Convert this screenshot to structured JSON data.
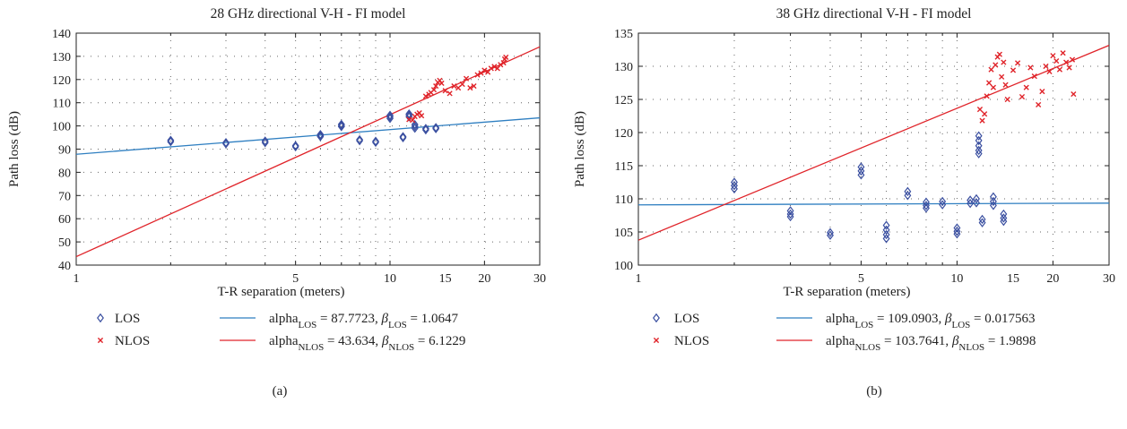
{
  "chart_data": [
    {
      "type": "scatter",
      "panel_label": "(a)",
      "title": "28 GHz directional V-H - FI model",
      "xlabel": "T-R separation (meters)",
      "ylabel": "Path loss (dB)",
      "xscale": "log",
      "xlim": [
        1,
        30
      ],
      "ylim": [
        40,
        140
      ],
      "xticks": [
        1,
        5,
        10,
        15,
        20,
        30
      ],
      "yticks": [
        40,
        50,
        60,
        70,
        80,
        90,
        100,
        110,
        120,
        130,
        140
      ],
      "grid": true,
      "legend_position": "bottom",
      "series": [
        {
          "name": "LOS",
          "marker": "diamond",
          "color": "#3a4fa0",
          "points": [
            [
              2,
              93.8
            ],
            [
              2,
              93.2
            ],
            [
              3,
              92.8
            ],
            [
              3,
              92.3
            ],
            [
              4,
              93.5
            ],
            [
              4,
              92.8
            ],
            [
              5,
              91.5
            ],
            [
              5,
              91.0
            ],
            [
              6,
              96.3
            ],
            [
              6,
              95.8
            ],
            [
              6,
              95.4
            ],
            [
              7,
              100.7
            ],
            [
              7,
              100.2
            ],
            [
              7,
              99.7
            ],
            [
              8,
              94.1
            ],
            [
              8,
              93.6
            ],
            [
              9,
              93.4
            ],
            [
              9,
              92.9
            ],
            [
              10,
              104.6
            ],
            [
              10,
              103.9
            ],
            [
              10,
              103.2
            ],
            [
              11,
              95.4
            ],
            [
              11,
              94.9
            ],
            [
              11.5,
              105.2
            ],
            [
              11.5,
              104.6
            ],
            [
              11.5,
              103.9
            ],
            [
              12,
              100.6
            ],
            [
              12,
              99.8
            ],
            [
              12,
              99.0
            ],
            [
              13,
              98.9
            ],
            [
              13,
              98.3
            ],
            [
              14,
              99.3
            ],
            [
              14,
              98.8
            ]
          ]
        },
        {
          "name": "NLOS",
          "marker": "x",
          "color": "#e0242a",
          "points": [
            [
              11.5,
              102.8
            ],
            [
              11.8,
              102.5
            ],
            [
              12,
              104.1
            ],
            [
              12.2,
              105.0
            ],
            [
              12.4,
              105.6
            ],
            [
              12.6,
              104.4
            ],
            [
              13,
              112.8
            ],
            [
              13.3,
              113.6
            ],
            [
              13.5,
              114.4
            ],
            [
              13.8,
              115.6
            ],
            [
              14,
              117.2
            ],
            [
              14.2,
              118.8
            ],
            [
              14.4,
              119.6
            ],
            [
              14.6,
              118.4
            ],
            [
              15,
              115.2
            ],
            [
              15.5,
              114.0
            ],
            [
              16,
              117.2
            ],
            [
              16.5,
              116.4
            ],
            [
              17,
              118.0
            ],
            [
              17.5,
              120.4
            ],
            [
              18,
              116.4
            ],
            [
              18.5,
              117.2
            ],
            [
              19,
              122.0
            ],
            [
              19.5,
              122.8
            ],
            [
              20,
              124.0
            ],
            [
              20.5,
              123.2
            ],
            [
              21,
              124.8
            ],
            [
              21.5,
              125.6
            ],
            [
              22,
              124.8
            ],
            [
              22.5,
              126.4
            ],
            [
              23,
              127.2
            ],
            [
              23.2,
              128.8
            ],
            [
              23.4,
              129.6
            ]
          ]
        }
      ],
      "fits": [
        {
          "color": "#2f7fc1",
          "alpha": 87.7723,
          "beta": 1.0647,
          "sub": "LOS",
          "alpha_text": "87.7723",
          "beta_text": "1.0647"
        },
        {
          "color": "#e0242a",
          "alpha": 43.634,
          "beta": 6.1229,
          "sub": "NLOS",
          "alpha_text": "43.634",
          "beta_text": "6.1229"
        }
      ]
    },
    {
      "type": "scatter",
      "panel_label": "(b)",
      "title": "38 GHz directional V-H - FI model",
      "xlabel": "T-R separation (meters)",
      "ylabel": "Path loss (dB)",
      "xscale": "log",
      "xlim": [
        1,
        30
      ],
      "ylim": [
        100,
        135
      ],
      "xticks": [
        1,
        5,
        10,
        15,
        20,
        30
      ],
      "yticks": [
        100,
        105,
        110,
        115,
        120,
        125,
        130,
        135
      ],
      "grid": true,
      "legend_position": "bottom",
      "series": [
        {
          "name": "LOS",
          "marker": "diamond",
          "color": "#3a4fa0",
          "points": [
            [
              2,
              112.5
            ],
            [
              2,
              112.0
            ],
            [
              2,
              111.5
            ],
            [
              3,
              108.2
            ],
            [
              3,
              107.7
            ],
            [
              3,
              107.3
            ],
            [
              4,
              104.9
            ],
            [
              4,
              104.5
            ],
            [
              5,
              114.8
            ],
            [
              5,
              114.2
            ],
            [
              5,
              113.6
            ],
            [
              6,
              106.0
            ],
            [
              6,
              105.3
            ],
            [
              6,
              104.6
            ],
            [
              6,
              104.0
            ],
            [
              7,
              111.1
            ],
            [
              7,
              110.5
            ],
            [
              8,
              109.5
            ],
            [
              8,
              109.0
            ],
            [
              8,
              108.6
            ],
            [
              9,
              109.6
            ],
            [
              9,
              109.1
            ],
            [
              10,
              105.6
            ],
            [
              10,
              105.1
            ],
            [
              10,
              104.7
            ],
            [
              11,
              109.8
            ],
            [
              11,
              109.3
            ],
            [
              11.5,
              110.0
            ],
            [
              11.5,
              109.4
            ],
            [
              11.7,
              119.5
            ],
            [
              11.7,
              118.8
            ],
            [
              11.7,
              118.0
            ],
            [
              11.7,
              117.3
            ],
            [
              11.7,
              116.8
            ],
            [
              12,
              106.9
            ],
            [
              12,
              106.4
            ],
            [
              13,
              110.3
            ],
            [
              13,
              109.6
            ],
            [
              13,
              109.0
            ],
            [
              14,
              107.7
            ],
            [
              14,
              107.1
            ],
            [
              14,
              106.6
            ]
          ]
        },
        {
          "name": "NLOS",
          "marker": "x",
          "color": "#e0242a",
          "points": [
            [
              11.8,
              123.5
            ],
            [
              12,
              121.8
            ],
            [
              12.2,
              122.8
            ],
            [
              12.4,
              125.5
            ],
            [
              12.6,
              127.5
            ],
            [
              12.8,
              129.5
            ],
            [
              13,
              126.8
            ],
            [
              13.2,
              130.2
            ],
            [
              13.4,
              131.4
            ],
            [
              13.6,
              131.8
            ],
            [
              13.8,
              128.4
            ],
            [
              14,
              130.6
            ],
            [
              14.2,
              127.2
            ],
            [
              14.4,
              125.0
            ],
            [
              15,
              129.4
            ],
            [
              15.5,
              130.5
            ],
            [
              16,
              125.4
            ],
            [
              16.5,
              126.8
            ],
            [
              17,
              129.8
            ],
            [
              17.5,
              128.5
            ],
            [
              18,
              124.2
            ],
            [
              18.5,
              126.2
            ],
            [
              19,
              130.0
            ],
            [
              19.5,
              129.2
            ],
            [
              20,
              131.6
            ],
            [
              20.5,
              130.8
            ],
            [
              21,
              129.5
            ],
            [
              21.5,
              132.0
            ],
            [
              22,
              130.6
            ],
            [
              22.5,
              129.8
            ],
            [
              23,
              131.0
            ],
            [
              23.2,
              125.8
            ]
          ]
        }
      ],
      "fits": [
        {
          "color": "#2f7fc1",
          "alpha": 109.0903,
          "beta": 0.017563,
          "sub": "LOS",
          "alpha_text": "109.0903",
          "beta_text": "0.017563"
        },
        {
          "color": "#e0242a",
          "alpha": 103.7641,
          "beta": 1.9898,
          "sub": "NLOS",
          "alpha_text": "103.7641",
          "beta_text": "1.9898"
        }
      ]
    }
  ]
}
